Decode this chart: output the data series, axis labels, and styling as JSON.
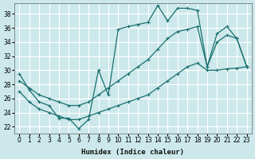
{
  "xlabel": "Humidex (Indice chaleur)",
  "xlim": [
    -0.5,
    23.5
  ],
  "ylim": [
    21.0,
    39.5
  ],
  "xticks": [
    0,
    1,
    2,
    3,
    4,
    5,
    6,
    7,
    8,
    9,
    10,
    11,
    12,
    13,
    14,
    15,
    16,
    17,
    18,
    19,
    20,
    21,
    22,
    23
  ],
  "yticks": [
    22,
    24,
    26,
    28,
    30,
    32,
    34,
    36,
    38
  ],
  "background_color": "#cce8ea",
  "grid_color": "#ffffff",
  "line_color": "#1a7070",
  "line1_x": [
    0,
    1,
    2,
    3,
    4,
    5,
    6,
    7,
    8,
    9,
    10,
    11,
    12,
    13,
    14,
    15,
    16,
    17,
    18,
    19,
    20,
    21,
    22,
    23
  ],
  "line1_y": [
    29.5,
    27.2,
    25.5,
    25.0,
    23.2,
    23.2,
    21.7,
    23.0,
    30.0,
    26.5,
    35.8,
    36.2,
    36.5,
    36.8,
    39.2,
    37.0,
    38.8,
    38.8,
    38.5,
    30.5,
    35.2,
    36.2,
    34.5,
    30.5
  ],
  "line2_x": [
    0,
    1,
    2,
    3,
    4,
    5,
    6,
    7,
    8,
    9,
    10,
    11,
    12,
    13,
    14,
    15,
    16,
    17,
    18,
    19,
    20,
    21,
    22,
    23
  ],
  "line2_y": [
    28.5,
    27.5,
    26.5,
    26.0,
    25.5,
    25.0,
    25.0,
    25.5,
    26.5,
    27.5,
    28.5,
    29.5,
    30.5,
    31.5,
    33.0,
    34.5,
    35.5,
    35.8,
    36.2,
    30.5,
    34.0,
    35.0,
    34.5,
    30.5
  ],
  "line3_x": [
    0,
    1,
    2,
    3,
    4,
    5,
    6,
    7,
    8,
    9,
    10,
    11,
    12,
    13,
    14,
    15,
    16,
    17,
    18,
    19,
    20,
    21,
    22,
    23
  ],
  "line3_y": [
    27.0,
    25.5,
    24.5,
    24.0,
    23.5,
    23.0,
    23.0,
    23.5,
    24.0,
    24.5,
    25.0,
    25.5,
    26.0,
    26.5,
    27.5,
    28.5,
    29.5,
    30.5,
    31.0,
    30.0,
    30.0,
    30.2,
    30.3,
    30.5
  ]
}
